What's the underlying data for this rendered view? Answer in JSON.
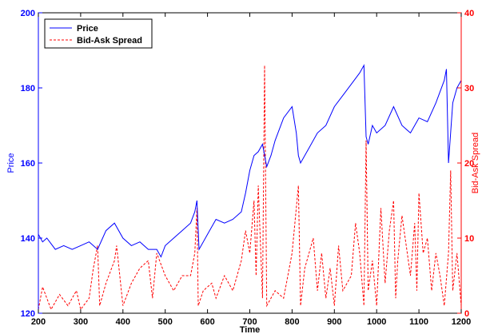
{
  "chart_data": {
    "type": "line",
    "title": "",
    "xlabel": "Time",
    "ylabel_left": "Price",
    "ylabel_right": "Bid-Ask Spread",
    "xlim": [
      200,
      1200
    ],
    "ylim_left": [
      120,
      200
    ],
    "ylim_right": [
      0,
      40
    ],
    "x_ticks": [
      200,
      300,
      400,
      500,
      600,
      700,
      800,
      900,
      1000,
      1100,
      1200
    ],
    "y_left_ticks": [
      120,
      140,
      160,
      180,
      200
    ],
    "y_right_ticks": [
      0,
      10,
      20,
      30,
      40
    ],
    "grid": false,
    "legend_position": "top-left",
    "colors": {
      "price": "#0000ff",
      "spread": "#ff0000",
      "axis": "#000000"
    },
    "series": [
      {
        "name": "Price",
        "axis": "left",
        "style": "solid",
        "x": [
          200,
          210,
          220,
          240,
          260,
          280,
          300,
          320,
          340,
          360,
          380,
          400,
          420,
          440,
          460,
          480,
          490,
          500,
          520,
          540,
          560,
          570,
          575,
          580,
          600,
          620,
          640,
          660,
          680,
          690,
          700,
          710,
          720,
          730,
          740,
          750,
          760,
          780,
          800,
          810,
          815,
          820,
          840,
          860,
          880,
          900,
          920,
          940,
          960,
          970,
          975,
          980,
          990,
          1000,
          1020,
          1040,
          1060,
          1080,
          1100,
          1120,
          1140,
          1160,
          1165,
          1170,
          1180,
          1190,
          1200
        ],
        "y": [
          141,
          139,
          140,
          137,
          138,
          137,
          138,
          139,
          137,
          142,
          144,
          140,
          138,
          139,
          137,
          137,
          135,
          138,
          140,
          142,
          144,
          147,
          150,
          137,
          141,
          145,
          144,
          145,
          147,
          152,
          158,
          162,
          163,
          165,
          159,
          162,
          166,
          172,
          175,
          168,
          162,
          160,
          164,
          168,
          170,
          175,
          178,
          181,
          184,
          186,
          167,
          165,
          170,
          168,
          170,
          175,
          170,
          168,
          172,
          171,
          176,
          182,
          185,
          160,
          176,
          180,
          182
        ]
      },
      {
        "name": "Bid-Ask Spread",
        "axis": "right",
        "style": "dashed",
        "x": [
          200,
          210,
          230,
          250,
          270,
          290,
          300,
          320,
          330,
          340,
          345,
          360,
          380,
          385,
          400,
          420,
          440,
          460,
          470,
          480,
          500,
          520,
          540,
          560,
          570,
          575,
          578,
          590,
          610,
          620,
          640,
          660,
          680,
          690,
          700,
          710,
          715,
          720,
          730,
          735,
          740,
          760,
          780,
          800,
          815,
          820,
          830,
          850,
          860,
          870,
          880,
          890,
          900,
          910,
          920,
          940,
          950,
          960,
          970,
          975,
          980,
          990,
          1000,
          1010,
          1020,
          1030,
          1040,
          1045,
          1050,
          1060,
          1070,
          1080,
          1090,
          1095,
          1100,
          1110,
          1120,
          1130,
          1140,
          1150,
          1160,
          1170,
          1175,
          1180,
          1190,
          1200
        ],
        "y": [
          0.5,
          3.5,
          0.5,
          2.5,
          1,
          3,
          0.5,
          2,
          6,
          9,
          1,
          4,
          7,
          9,
          1,
          4,
          6,
          7,
          2,
          8,
          5,
          3,
          5,
          5,
          8,
          14,
          1,
          3,
          4,
          2,
          5,
          3,
          7,
          11,
          8,
          15,
          5,
          17,
          2,
          33,
          1,
          3,
          2,
          8,
          17,
          1,
          6,
          10,
          3,
          8,
          2,
          6,
          1,
          9,
          3,
          5,
          12,
          8,
          1,
          23,
          3,
          7,
          1,
          14,
          4,
          11,
          15,
          2,
          7,
          13,
          9,
          5,
          12,
          3,
          16,
          8,
          10,
          3,
          8,
          5,
          1,
          8,
          19,
          3,
          8,
          1
        ]
      }
    ]
  }
}
